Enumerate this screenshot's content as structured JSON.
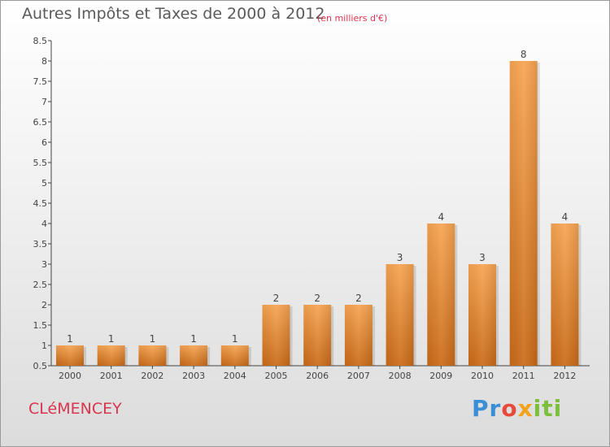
{
  "header": {
    "title": "Autres Impôts et Taxes de 2000 à 2012",
    "subtitle": "(en milliers d'€)"
  },
  "footer": {
    "town": "CLéMENCEY",
    "logo_letters": [
      "Pr",
      "o",
      "x",
      "iti"
    ]
  },
  "colors": {
    "bar_top": "#f7a452",
    "bar_bottom": "#c96a18",
    "title": "#5a5a5a",
    "accent": "#d8354e"
  },
  "chart_data": {
    "type": "bar",
    "categories": [
      "2000",
      "2001",
      "2002",
      "2003",
      "2004",
      "2005",
      "2006",
      "2007",
      "2008",
      "2009",
      "2010",
      "2011",
      "2012"
    ],
    "values": [
      1,
      1,
      1,
      1,
      1,
      2,
      2,
      2,
      3,
      4,
      3,
      8,
      4
    ],
    "ylim": [
      0.5,
      8.5
    ],
    "yticks": [
      "0.5",
      "1",
      "1.5",
      "2",
      "2.5",
      "3",
      "3.5",
      "4",
      "4.5",
      "5",
      "5.5",
      "6",
      "6.5",
      "7",
      "7.5",
      "8",
      "8.5"
    ],
    "grid": false,
    "legend": "none"
  }
}
